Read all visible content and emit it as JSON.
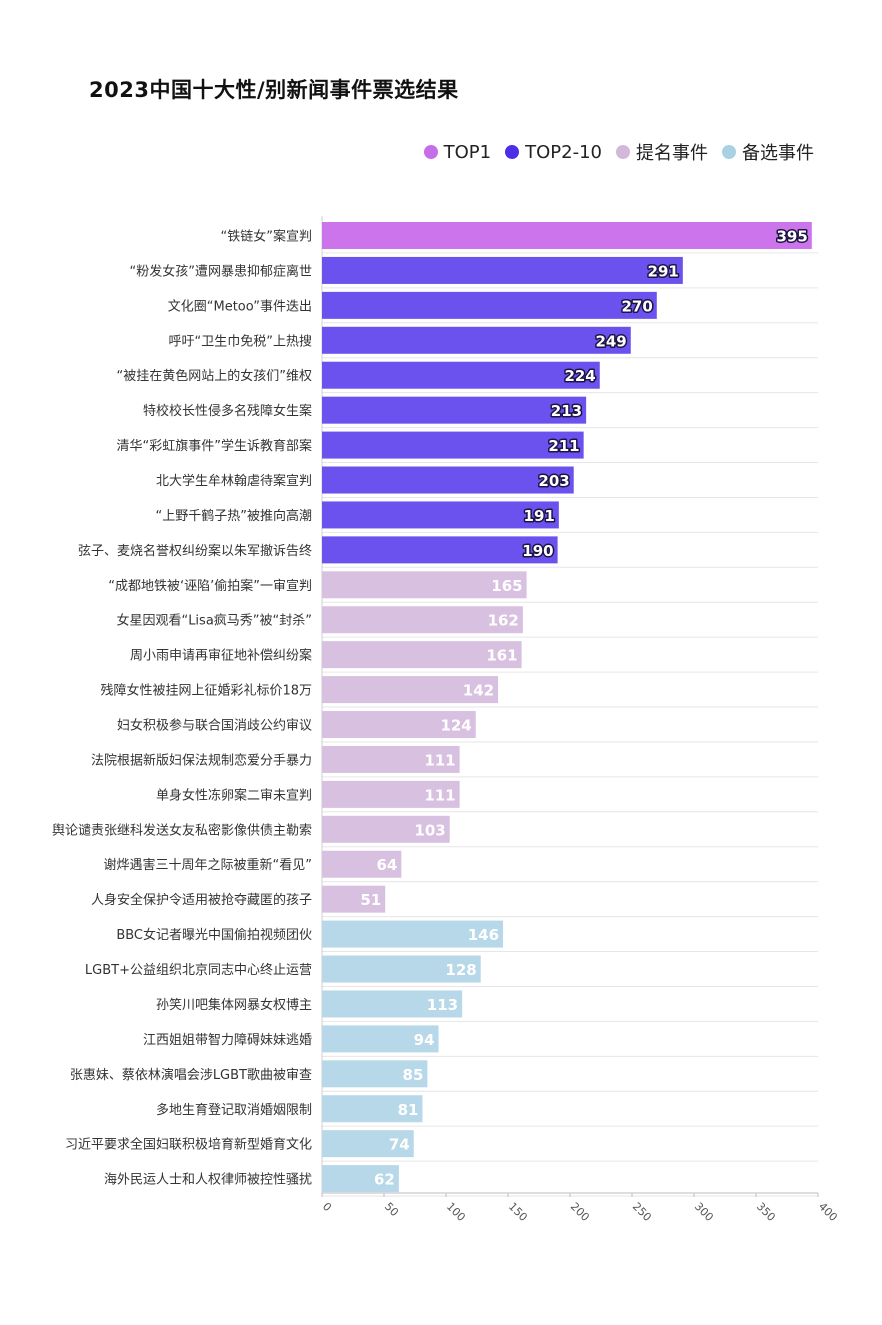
{
  "title": "2023中国十大性/别新闻事件票选结果",
  "legend": [
    {
      "label": "TOP1",
      "color": "#c56ee8"
    },
    {
      "label": "TOP2-10",
      "color": "#4b2fe6"
    },
    {
      "label": "提名事件",
      "color": "#d3b8dc"
    },
    {
      "label": "备选事件",
      "color": "#a9d1e4"
    }
  ],
  "colors": {
    "top1": "#cc74eb",
    "top2_10": "#6b52ee",
    "nominated": "#d8c1e0",
    "candidate": "#b7d8e8",
    "grid": "#e6e6ea"
  },
  "chart_data": {
    "type": "bar",
    "orientation": "horizontal",
    "title": "2023中国十大性/别新闻事件票选结果",
    "xlim": [
      0,
      400
    ],
    "xticks": [
      0,
      50,
      100,
      150,
      200,
      250,
      300,
      350,
      400
    ],
    "grid": true,
    "legend_position": "top-right",
    "bars": [
      {
        "label": "“铁链女”案宣判",
        "value": 395,
        "group": "TOP1"
      },
      {
        "label": "“粉发女孩”遭网暴患抑郁症离世",
        "value": 291,
        "group": "TOP2-10"
      },
      {
        "label": "文化圈“Metoo”事件迭出",
        "value": 270,
        "group": "TOP2-10"
      },
      {
        "label": "呼吁“卫生巾免税”上热搜",
        "value": 249,
        "group": "TOP2-10"
      },
      {
        "label": "“被挂在黄色网站上的女孩们”维权",
        "value": 224,
        "group": "TOP2-10"
      },
      {
        "label": "特校校长性侵多名残障女生案",
        "value": 213,
        "group": "TOP2-10"
      },
      {
        "label": "清华“彩虹旗事件”学生诉教育部案",
        "value": 211,
        "group": "TOP2-10"
      },
      {
        "label": "北大学生牟林翰虐待案宣判",
        "value": 203,
        "group": "TOP2-10"
      },
      {
        "label": "“上野千鹤子热”被推向高潮",
        "value": 191,
        "group": "TOP2-10"
      },
      {
        "label": "弦子、麦烧名誉权纠纷案以朱军撤诉告终",
        "value": 190,
        "group": "TOP2-10"
      },
      {
        "label": "“成都地铁被‘诬陷’偷拍案”一审宣判",
        "value": 165,
        "group": "提名事件"
      },
      {
        "label": "女星因观看“Lisa疯马秀”被“封杀”",
        "value": 162,
        "group": "提名事件"
      },
      {
        "label": "周小雨申请再审征地补偿纠纷案",
        "value": 161,
        "group": "提名事件"
      },
      {
        "label": "残障女性被挂网上征婚彩礼标价18万",
        "value": 142,
        "group": "提名事件"
      },
      {
        "label": "妇女积极参与联合国消歧公约审议",
        "value": 124,
        "group": "提名事件"
      },
      {
        "label": "法院根据新版妇保法规制恋爱分手暴力",
        "value": 111,
        "group": "提名事件"
      },
      {
        "label": "单身女性冻卵案二审未宣判",
        "value": 111,
        "group": "提名事件"
      },
      {
        "label": "舆论谴责张继科发送女友私密影像供债主勒索",
        "value": 103,
        "group": "提名事件"
      },
      {
        "label": "谢烨遇害三十周年之际被重新“看见”",
        "value": 64,
        "group": "提名事件"
      },
      {
        "label": "人身安全保护令适用被抢夺藏匿的孩子",
        "value": 51,
        "group": "提名事件"
      },
      {
        "label": "BBC女记者曝光中国偷拍视频团伙",
        "value": 146,
        "group": "备选事件"
      },
      {
        "label": "LGBT+公益组织北京同志中心终止运营",
        "value": 128,
        "group": "备选事件"
      },
      {
        "label": "孙笑川吧集体网暴女权博主",
        "value": 113,
        "group": "备选事件"
      },
      {
        "label": "江西姐姐带智力障碍妹妹逃婚",
        "value": 94,
        "group": "备选事件"
      },
      {
        "label": "张惠妹、蔡依林演唱会涉LGBT歌曲被审查",
        "value": 85,
        "group": "备选事件"
      },
      {
        "label": "多地生育登记取消婚姻限制",
        "value": 81,
        "group": "备选事件"
      },
      {
        "label": "习近平要求全国妇联积极培育新型婚育文化",
        "value": 74,
        "group": "备选事件"
      },
      {
        "label": "海外民运人士和人权律师被控性骚扰",
        "value": 62,
        "group": "备选事件"
      }
    ]
  }
}
